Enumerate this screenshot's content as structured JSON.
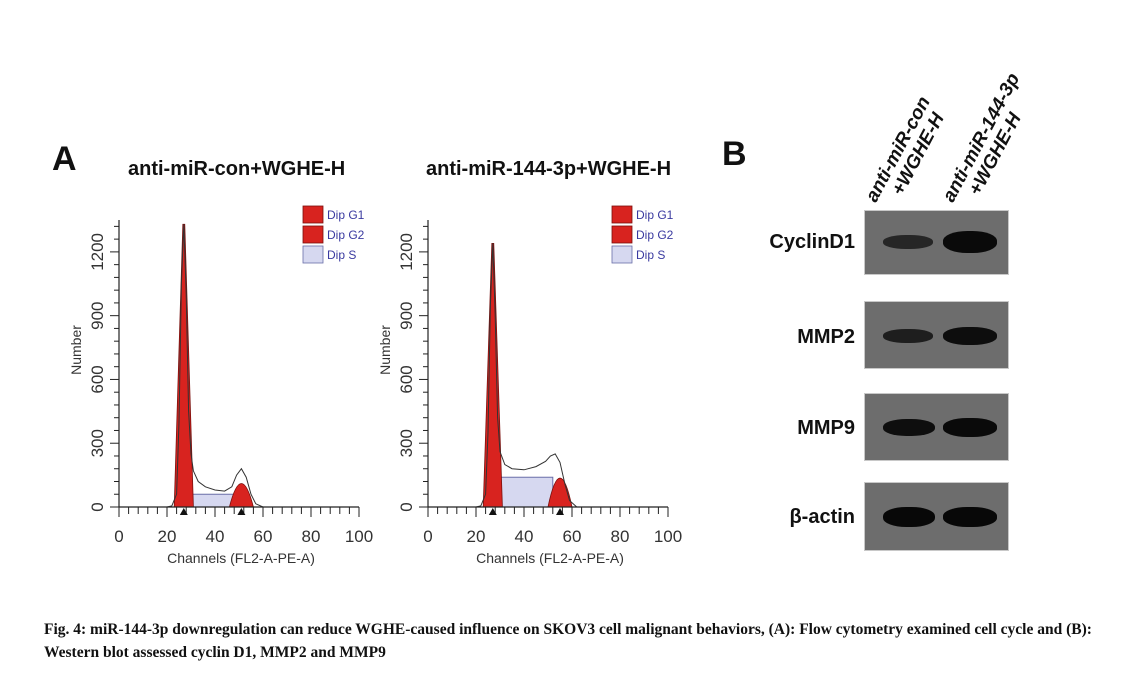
{
  "panel_a": {
    "letter": "A",
    "titles": [
      "anti-miR-con+WGHE-H",
      "anti-miR-144-3p+WGHE-H"
    ]
  },
  "panel_b": {
    "letter": "B",
    "lanes": [
      {
        "line1": "anti-miR-con",
        "line2": "+WGHE-H"
      },
      {
        "line1": "anti-miR-144-3p",
        "line2": "+WGHE-H"
      }
    ],
    "rows": [
      {
        "label": "CyclinD1",
        "intensity": [
          0.55,
          1.0
        ]
      },
      {
        "label": "MMP2",
        "intensity": [
          0.6,
          0.85
        ]
      },
      {
        "label": "MMP9",
        "intensity": [
          0.8,
          0.9
        ]
      },
      {
        "label": "β-actin",
        "intensity": [
          0.95,
          0.95
        ]
      }
    ]
  },
  "chart_data": [
    {
      "type": "area",
      "title": "anti-miR-con+WGHE-H",
      "xlabel": "Channels (FL2-A-PE-A)",
      "ylabel": "Number",
      "xlim": [
        0,
        100
      ],
      "ylim": [
        0,
        1350
      ],
      "xticks": [
        "0",
        "20",
        "40",
        "60",
        "80",
        "100"
      ],
      "yticks": [
        "0",
        "300",
        "600",
        "900",
        "1200"
      ],
      "legend": [
        "Dip G1",
        "Dip G2",
        "Dip S"
      ],
      "legend_position": "top-right",
      "g1_peak": {
        "x": 27,
        "y": 1330
      },
      "g2_peak": {
        "x": 51,
        "y": 130
      },
      "s_level": 60,
      "markers_x": [
        27,
        51
      ],
      "histogram": [
        [
          20,
          0
        ],
        [
          22,
          5
        ],
        [
          24,
          60
        ],
        [
          25,
          400
        ],
        [
          26,
          1050
        ],
        [
          27,
          1330
        ],
        [
          28,
          1000
        ],
        [
          29,
          450
        ],
        [
          30,
          250
        ],
        [
          31,
          170
        ],
        [
          33,
          120
        ],
        [
          36,
          95
        ],
        [
          40,
          80
        ],
        [
          44,
          75
        ],
        [
          47,
          95
        ],
        [
          49,
          150
        ],
        [
          51,
          180
        ],
        [
          53,
          140
        ],
        [
          55,
          60
        ],
        [
          57,
          15
        ],
        [
          60,
          0
        ]
      ]
    },
    {
      "type": "area",
      "title": "anti-miR-144-3p+WGHE-H",
      "xlabel": "Channels (FL2-A-PE-A)",
      "ylabel": "Number",
      "xlim": [
        0,
        100
      ],
      "ylim": [
        0,
        1350
      ],
      "xticks": [
        "0",
        "20",
        "40",
        "60",
        "80",
        "100"
      ],
      "yticks": [
        "0",
        "300",
        "600",
        "900",
        "1200"
      ],
      "legend": [
        "Dip G1",
        "Dip G2",
        "Dip S"
      ],
      "legend_position": "top-right",
      "g1_peak": {
        "x": 27,
        "y": 1240
      },
      "g2_peak": {
        "x": 55,
        "y": 160
      },
      "s_level": 140,
      "markers_x": [
        27,
        55
      ],
      "histogram": [
        [
          20,
          0
        ],
        [
          22,
          5
        ],
        [
          24,
          60
        ],
        [
          25,
          350
        ],
        [
          26,
          950
        ],
        [
          27,
          1240
        ],
        [
          28,
          900
        ],
        [
          29,
          420
        ],
        [
          30,
          260
        ],
        [
          32,
          200
        ],
        [
          35,
          180
        ],
        [
          40,
          175
        ],
        [
          45,
          190
        ],
        [
          49,
          215
        ],
        [
          51,
          240
        ],
        [
          53,
          250
        ],
        [
          55,
          210
        ],
        [
          57,
          110
        ],
        [
          59,
          30
        ],
        [
          62,
          0
        ]
      ]
    }
  ],
  "caption": "Fig. 4: miR-144-3p downregulation can reduce WGHE-caused influence on SKOV3 cell malignant behaviors, (A): Flow cytometry examined cell cycle and (B): Western blot assessed cyclin D1, MMP2 and MMP9"
}
